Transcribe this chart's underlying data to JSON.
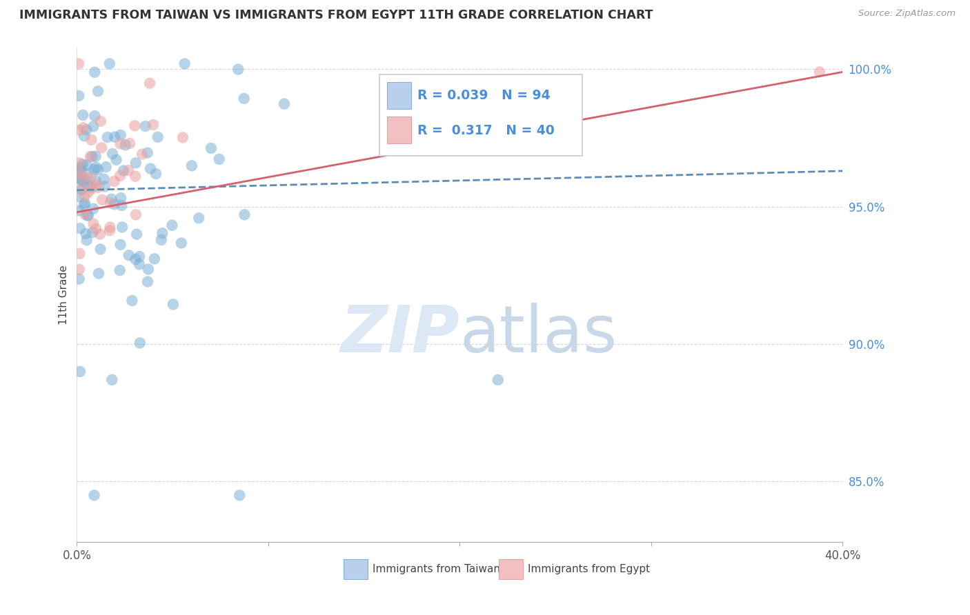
{
  "title": "IMMIGRANTS FROM TAIWAN VS IMMIGRANTS FROM EGYPT 11TH GRADE CORRELATION CHART",
  "source": "Source: ZipAtlas.com",
  "xlabel_taiwan": "Immigrants from Taiwan",
  "xlabel_egypt": "Immigrants from Egypt",
  "ylabel": "11th Grade",
  "xlim": [
    0.0,
    0.4
  ],
  "ylim": [
    0.828,
    1.008
  ],
  "xtick_labels_left": "0.0%",
  "xtick_labels_right": "40.0%",
  "ytick_positions": [
    0.85,
    0.9,
    0.95,
    1.0
  ],
  "ytick_labels": [
    "85.0%",
    "90.0%",
    "95.0%",
    "100.0%"
  ],
  "R_taiwan": 0.039,
  "N_taiwan": 94,
  "R_egypt": 0.317,
  "N_egypt": 40,
  "color_taiwan": "#7bafd4",
  "color_egypt": "#e8a0a0",
  "line_taiwan_color": "#5b8db8",
  "line_egypt_color": "#d45f6e",
  "legend_fill_taiwan": "#b8d0ee",
  "legend_fill_egypt": "#f2c0c0",
  "legend_edge_taiwan": "#8ab0d8",
  "legend_edge_egypt": "#e8a0a0",
  "grid_color": "#cccccc",
  "background_color": "#ffffff",
  "watermark_color": "#dce8f5",
  "taiwan_line_y0": 0.956,
  "taiwan_line_y1": 0.963,
  "egypt_line_y0": 0.948,
  "egypt_line_y1": 0.999
}
